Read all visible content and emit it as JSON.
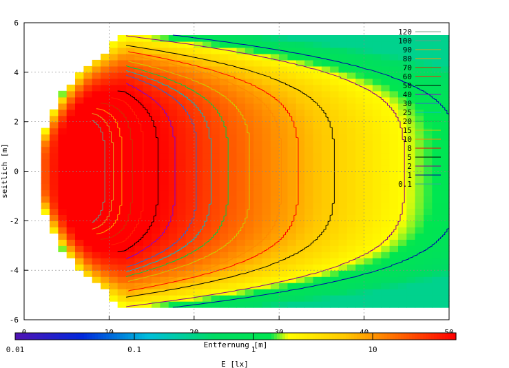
{
  "chart_data": {
    "type": "heatmap",
    "xlabel": "Entfernung [m]",
    "ylabel": "seitlich [m]",
    "xlim": [
      0,
      50
    ],
    "ylim": [
      -6,
      6
    ],
    "xticks": [
      "0",
      "10",
      "20",
      "30",
      "40",
      "50"
    ],
    "yticks": [
      "6",
      "4",
      "2",
      "0",
      "-2",
      "-4",
      "-6"
    ],
    "grid": true,
    "legend_position": "top-right",
    "contour_levels": [
      {
        "value": "120",
        "color": "#7aa088"
      },
      {
        "value": "100",
        "color": "#5fa08a"
      },
      {
        "value": "90",
        "color": "#e0a020"
      },
      {
        "value": "80",
        "color": "#ff9900"
      },
      {
        "value": "70",
        "color": "#cc3300"
      },
      {
        "value": "60",
        "color": "#ff2200"
      },
      {
        "value": "50",
        "color": "#000000"
      },
      {
        "value": "40",
        "color": "#8800cc"
      },
      {
        "value": "30",
        "color": "#3366cc"
      },
      {
        "value": "25",
        "color": "#00bbcc"
      },
      {
        "value": "20",
        "color": "#00cc44"
      },
      {
        "value": "15",
        "color": "#cccc00"
      },
      {
        "value": "10",
        "color": "#ff8800"
      },
      {
        "value": "8",
        "color": "#ff0000"
      },
      {
        "value": "5",
        "color": "#000000"
      },
      {
        "value": "2",
        "color": "#880088"
      },
      {
        "value": "1",
        "color": "#0000aa"
      },
      {
        "value": "0.1",
        "color": "#33aa99"
      }
    ],
    "colorbar": {
      "label": "E [lx]",
      "scale": "log",
      "range": [
        0.01,
        50
      ],
      "ticks": [
        "0.01",
        "0.1",
        "1",
        "10"
      ]
    },
    "light_pattern": {
      "apex_x": 2,
      "apex_halfwidth": 0.8,
      "peak_x": 8,
      "peak_value": 120,
      "edge_halfwidth": 5.5,
      "far_extent_x": 50
    }
  }
}
